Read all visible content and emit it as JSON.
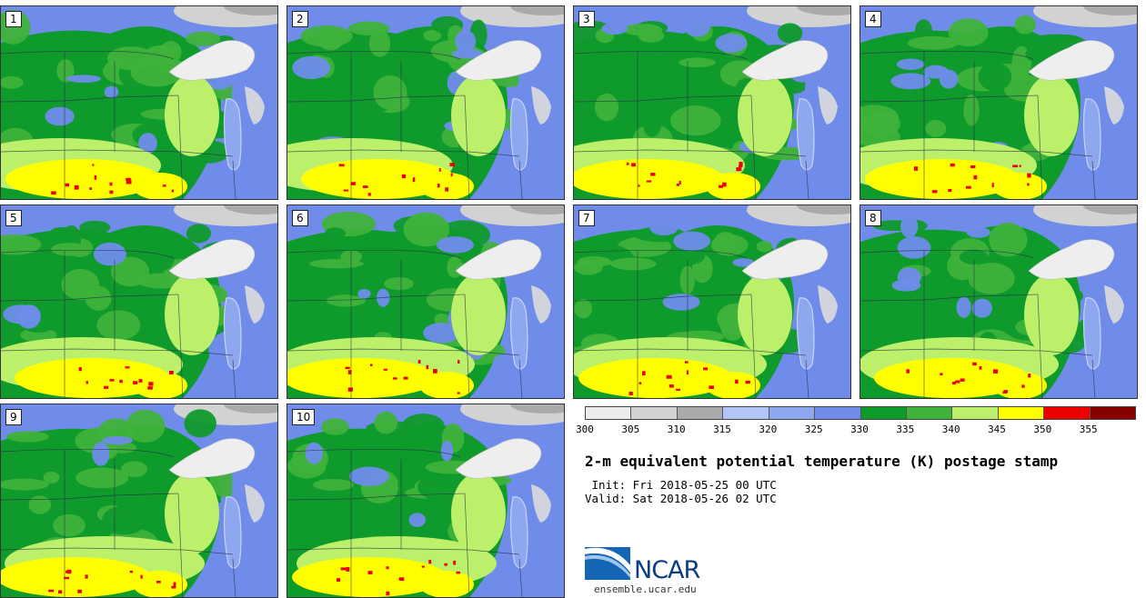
{
  "panels": [
    {
      "label": "1"
    },
    {
      "label": "2"
    },
    {
      "label": "3"
    },
    {
      "label": "4"
    },
    {
      "label": "5"
    },
    {
      "label": "6"
    },
    {
      "label": "7"
    },
    {
      "label": "8"
    },
    {
      "label": "9"
    },
    {
      "label": "10"
    }
  ],
  "legend": {
    "colors": [
      "#ececec",
      "#d2d2d2",
      "#aaaaaa",
      "#b4c4f6",
      "#8ea8f0",
      "#6f8cea",
      "#0f9a2c",
      "#3fb23a",
      "#bcf06a",
      "#ffff00",
      "#ee0000",
      "#8a0000"
    ],
    "ticks": [
      "300",
      "305",
      "310",
      "315",
      "320",
      "325",
      "330",
      "335",
      "340",
      "345",
      "350",
      "355"
    ]
  },
  "title": "2-m equivalent potential temperature (K) postage stamp",
  "init": " Init: Fri 2018-05-25 00 UTC",
  "valid": "Valid: Sat 2018-05-26 02 UTC",
  "logo": {
    "name": "NCAR",
    "website": "ensemble.ucar.edu"
  }
}
